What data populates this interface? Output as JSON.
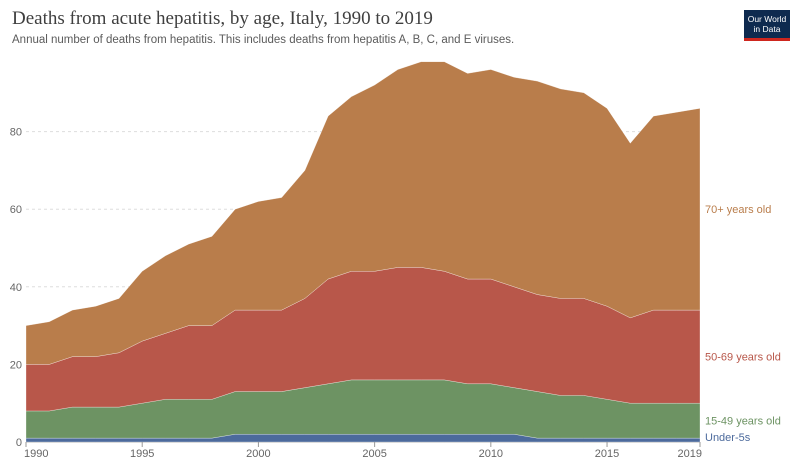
{
  "header": {
    "title": "Deaths from acute hepatitis, by age, Italy, 1990 to 2019",
    "subtitle": "Annual number of deaths from hepatitis. This includes deaths from hepatitis A, B, C, and E viruses."
  },
  "logo": {
    "line1": "Our World",
    "line2": "in Data",
    "bg": "#0e2a4f",
    "accent": "#ce261e"
  },
  "chart_data": {
    "type": "area",
    "stacked": true,
    "title": "Deaths from acute hepatitis, by age, Italy, 1990 to 2019",
    "xlabel": "",
    "ylabel": "",
    "xlim": [
      1990,
      2019
    ],
    "ylim": [
      0,
      100
    ],
    "x": [
      1990,
      1991,
      1992,
      1993,
      1994,
      1995,
      1996,
      1997,
      1998,
      1999,
      2000,
      2001,
      2002,
      2003,
      2004,
      2005,
      2006,
      2007,
      2008,
      2009,
      2010,
      2011,
      2012,
      2013,
      2014,
      2015,
      2016,
      2017,
      2018,
      2019
    ],
    "x_ticks": [
      1990,
      1995,
      2000,
      2005,
      2010,
      2015,
      2019
    ],
    "y_ticks": [
      0,
      20,
      40,
      60,
      80
    ],
    "grid": "horizontal dashed",
    "legend": "right (inline labels at series end)",
    "series": [
      {
        "name": "Under-5s",
        "color": "#4c6a9c",
        "values": [
          1,
          1,
          1,
          1,
          1,
          1,
          1,
          1,
          1,
          2,
          2,
          2,
          2,
          2,
          2,
          2,
          2,
          2,
          2,
          2,
          2,
          2,
          1,
          1,
          1,
          1,
          1,
          1,
          1,
          1
        ]
      },
      {
        "name": "15-49 years old",
        "color": "#6d9363",
        "values": [
          7,
          7,
          8,
          8,
          8,
          9,
          10,
          10,
          10,
          11,
          11,
          11,
          12,
          13,
          14,
          14,
          14,
          14,
          14,
          13,
          13,
          12,
          12,
          11,
          11,
          10,
          9,
          9,
          9,
          9
        ]
      },
      {
        "name": "50-69 years old",
        "color": "#b8574a",
        "values": [
          12,
          12,
          13,
          13,
          14,
          16,
          17,
          19,
          19,
          21,
          21,
          21,
          23,
          27,
          28,
          28,
          29,
          29,
          28,
          27,
          27,
          26,
          25,
          25,
          25,
          24,
          22,
          24,
          24,
          24
        ]
      },
      {
        "name": "70+ years old",
        "color": "#b97d4b",
        "values": [
          10,
          11,
          12,
          13,
          14,
          18,
          20,
          21,
          23,
          26,
          28,
          29,
          33,
          42,
          45,
          48,
          51,
          53,
          54,
          53,
          54,
          54,
          55,
          54,
          53,
          51,
          45,
          50,
          51,
          52
        ]
      }
    ]
  }
}
